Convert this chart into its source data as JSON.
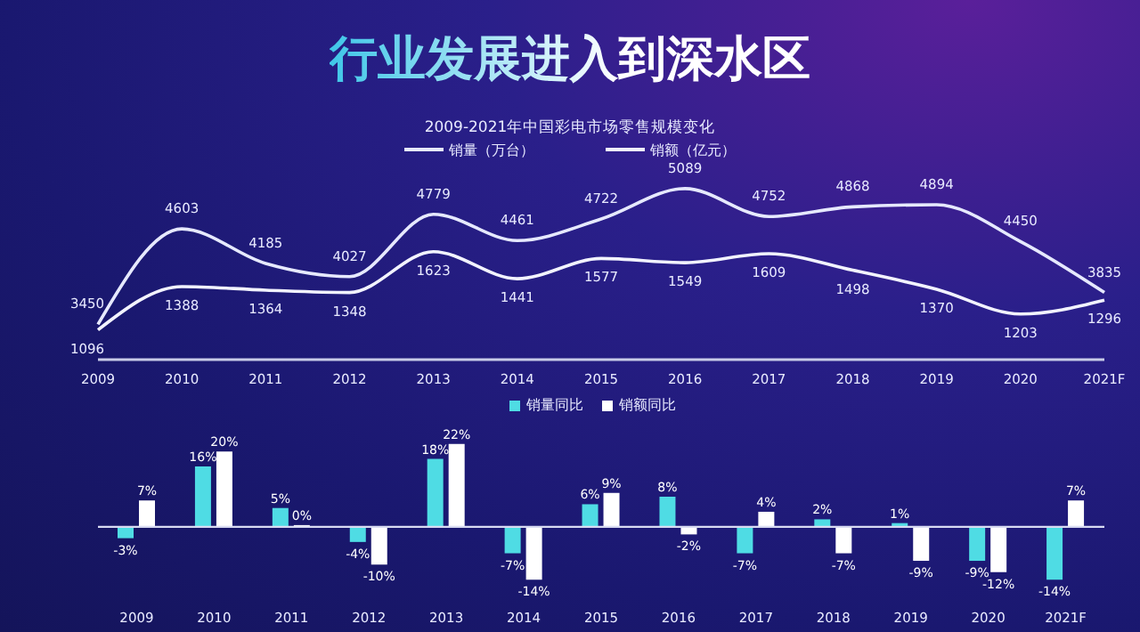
{
  "chart_data": [
    {
      "type": "line",
      "title": "行业发展进入到深水区",
      "subtitle": "2009-2021年中国彩电市场零售规模变化",
      "categories": [
        "2009",
        "2010",
        "2011",
        "2012",
        "2013",
        "2014",
        "2015",
        "2016",
        "2017",
        "2018",
        "2019",
        "2020",
        "2021F"
      ],
      "legend": "top",
      "data_labels": true,
      "marker": "none",
      "line_style": "solid",
      "series": [
        {
          "name": "销量（万台）",
          "color": "#e6e9ff",
          "values": [
            3450,
            4603,
            4185,
            4027,
            4779,
            4461,
            4722,
            5089,
            4752,
            4868,
            4894,
            4450,
            3835
          ]
        },
        {
          "name": "销额（亿元）",
          "color": "#f2f3ff",
          "axis": "y2",
          "values": [
            1096,
            1388,
            1364,
            1348,
            1623,
            1441,
            1577,
            1549,
            1609,
            1498,
            1370,
            1203,
            1296
          ]
        }
      ]
    },
    {
      "type": "bar",
      "categories": [
        "2009",
        "2010",
        "2011",
        "2012",
        "2013",
        "2014",
        "2015",
        "2016",
        "2017",
        "2018",
        "2019",
        "2020",
        "2021F"
      ],
      "legend": "top",
      "series": [
        {
          "name": "销量同比",
          "color": "#4fdce4",
          "values": [
            -3,
            16,
            5,
            -4,
            18,
            -7,
            6,
            8,
            -7,
            2,
            1,
            -9,
            -14
          ],
          "value_labels": [
            "-3%",
            "16%",
            "5%",
            "-4%",
            "18%",
            "-7%",
            "6%",
            "8%",
            "-7%",
            "2%",
            "1%",
            "-9%",
            "-14%"
          ]
        },
        {
          "name": "销额同比",
          "color": "#ffffff",
          "values": [
            7,
            20,
            0,
            -10,
            22,
            -14,
            9,
            -2,
            4,
            -7,
            -9,
            -12,
            7
          ],
          "value_labels": [
            "7%",
            "20%",
            "0%",
            "-10%",
            "22%",
            "-14%",
            "9%",
            "-2%",
            "4%",
            "-7%",
            "-9%",
            "-12%",
            "7%"
          ]
        }
      ]
    }
  ]
}
